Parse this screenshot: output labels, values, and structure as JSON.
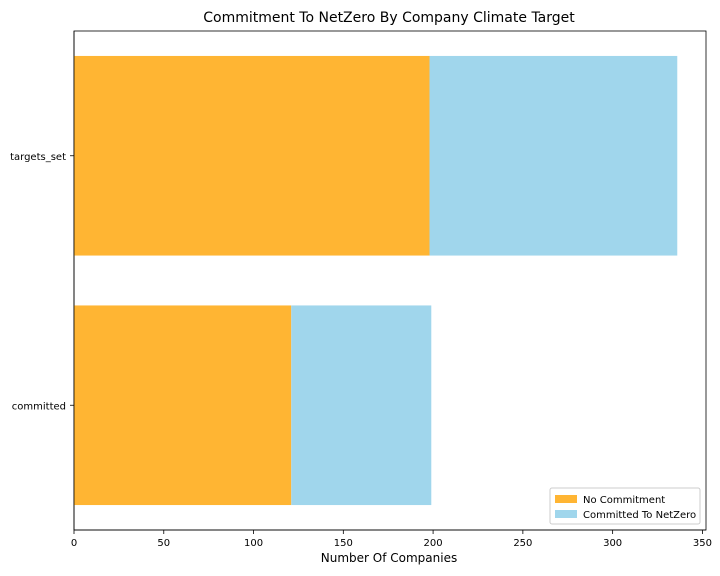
{
  "chart_data": {
    "type": "bar",
    "orientation": "horizontal",
    "stacked": true,
    "title": "Commitment To NetZero By Company Climate Target",
    "xlabel": "Number Of Companies",
    "ylabel": "",
    "categories": [
      "committed",
      "targets_set"
    ],
    "series": [
      {
        "name": "No Commitment",
        "values": [
          121,
          198
        ],
        "color": "#FFB533"
      },
      {
        "name": "Committed To NetZero",
        "values": [
          78,
          138
        ],
        "color": "#A0D6EC"
      }
    ],
    "xlim": [
      0,
      352
    ],
    "xticks": [
      0,
      50,
      100,
      150,
      200,
      250,
      300,
      350
    ],
    "grid": false,
    "legend_position": "lower-right"
  }
}
